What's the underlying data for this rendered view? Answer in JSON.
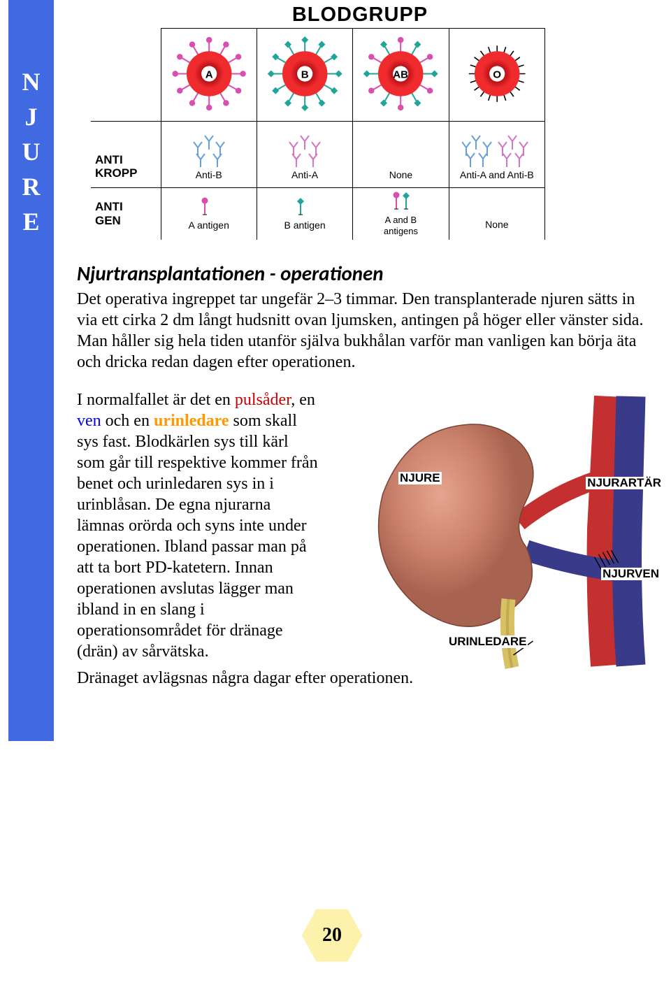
{
  "sidebar": {
    "letters": [
      "N",
      "J",
      "U",
      "R",
      "E"
    ]
  },
  "bloodChart": {
    "title": "BLODGRUPP",
    "rowLabels": {
      "cells": "",
      "antibody": "ANTI\nKROPP",
      "antigen": "ANTI\nGEN"
    },
    "types": [
      {
        "name": "A",
        "antibody": "Anti-B",
        "antigen": "A antigen",
        "antigenPins": [
          "pink"
        ],
        "surface": [
          "pink"
        ]
      },
      {
        "name": "B",
        "antibody": "Anti-A",
        "antigen": "B antigen",
        "antigenPins": [
          "teal"
        ],
        "surface": [
          "teal"
        ]
      },
      {
        "name": "AB",
        "antibody": "None",
        "antigen": "A and B\nantigens",
        "antigenPins": [
          "pink",
          "teal"
        ],
        "surface": [
          "pink",
          "teal"
        ]
      },
      {
        "name": "O",
        "antibody": "Anti-A and Anti-B",
        "antigen": "None",
        "antigenPins": [],
        "surface": [
          "tick"
        ]
      }
    ],
    "colors": {
      "cellOuter": "#ef2b2d",
      "cellMid": "#b91218",
      "cellCore": "#1a0302",
      "pink": "#d94fb0",
      "teal": "#1fa59a",
      "antibodyBlue": "#6aa0d8",
      "antibodyPink": "#d277c3"
    }
  },
  "section": {
    "title": "Njurtransplantationen - operationen",
    "p1": "Det operativa ingreppet tar ungefär 2–3 timmar. Den transplanterade njuren sätts in via ett cirka 2 dm långt hudsnitt ovan ljumsken, antingen på höger eller vänster sida. Man håller sig hela tiden utanför själva bukhålan varför man vanligen kan börja äta och dricka redan dagen efter operationen.",
    "p2a": "I normalfallet är det en ",
    "p2_puls": "pulsåder",
    "p2b": ", en ",
    "p2_ven": "ven",
    "p2c": " och en ",
    "p2_urin": "urinledare",
    "p2d": " som skall sys fast. Blodkärlen sys till kärl som går till respektive kommer från benet och urinledaren sys in i urinblåsan. De egna njurarna lämnas orörda och syns inte under operationen. Ibland passar man på att ta bort PD-katetern. Innan operationen avslutas lägger man ibland in en slang i operationsområdet för dränage (drän) av sårvätska.",
    "p2_tail": "Dränaget avlägsnas några dagar efter operationen."
  },
  "kidneyLabels": {
    "kidney": "NJURE",
    "artery": "NJURARTÄR",
    "vein": "NJURVEN",
    "ureter": "URINLEDARE"
  },
  "pageNumber": "20"
}
